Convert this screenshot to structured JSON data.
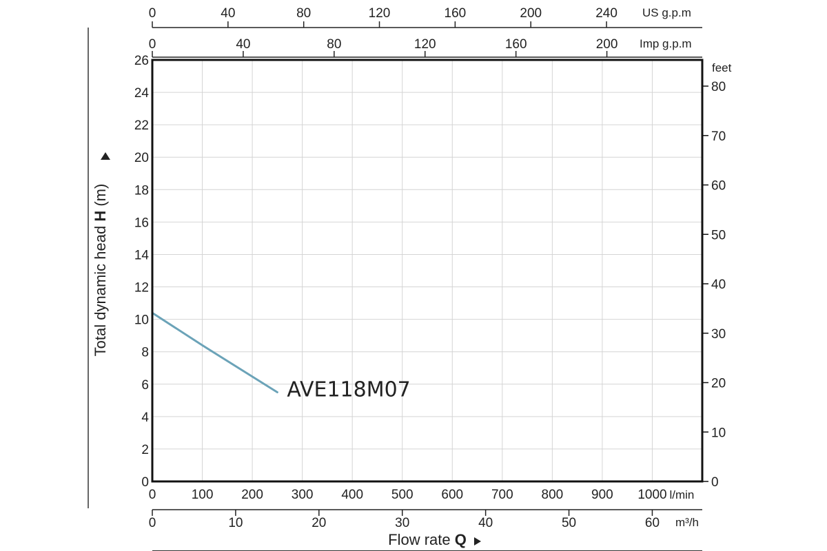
{
  "chart_data": {
    "type": "line",
    "title": "",
    "ylabel": {
      "prefix": "Total dynamic head ",
      "bold": "H",
      "suffix": " (m)"
    },
    "xlabel": {
      "prefix": "Flow rate ",
      "bold": "Q"
    },
    "ylim": [
      0,
      26
    ],
    "xlim": [
      0,
      1100
    ],
    "grid": true,
    "y_ticks": [
      0,
      2,
      4,
      6,
      8,
      10,
      12,
      14,
      16,
      18,
      20,
      22,
      24,
      26
    ],
    "x_ticks_lmin": [
      0,
      100,
      200,
      300,
      400,
      500,
      600,
      700,
      800,
      900,
      1000
    ],
    "x_unit_lmin": "l/min",
    "feet_axis": {
      "unit": "feet",
      "ticks": [
        0,
        10,
        20,
        30,
        40,
        50,
        60,
        70,
        80
      ]
    },
    "us_gpm_axis": {
      "unit": "US g.p.m",
      "ticks": [
        0,
        40,
        80,
        120,
        160,
        200,
        240
      ]
    },
    "imp_gpm_axis": {
      "unit": "Imp g.p.m",
      "ticks": [
        0,
        40,
        80,
        120,
        160,
        200
      ]
    },
    "m3h_axis": {
      "unit": "m³/h",
      "ticks": [
        0,
        10,
        20,
        30,
        40,
        50,
        60
      ]
    },
    "series": [
      {
        "name": "AVE118M07",
        "color": "#6ba3b8",
        "x": [
          0,
          100,
          250
        ],
        "y": [
          10.4,
          8.4,
          5.5
        ]
      }
    ]
  }
}
